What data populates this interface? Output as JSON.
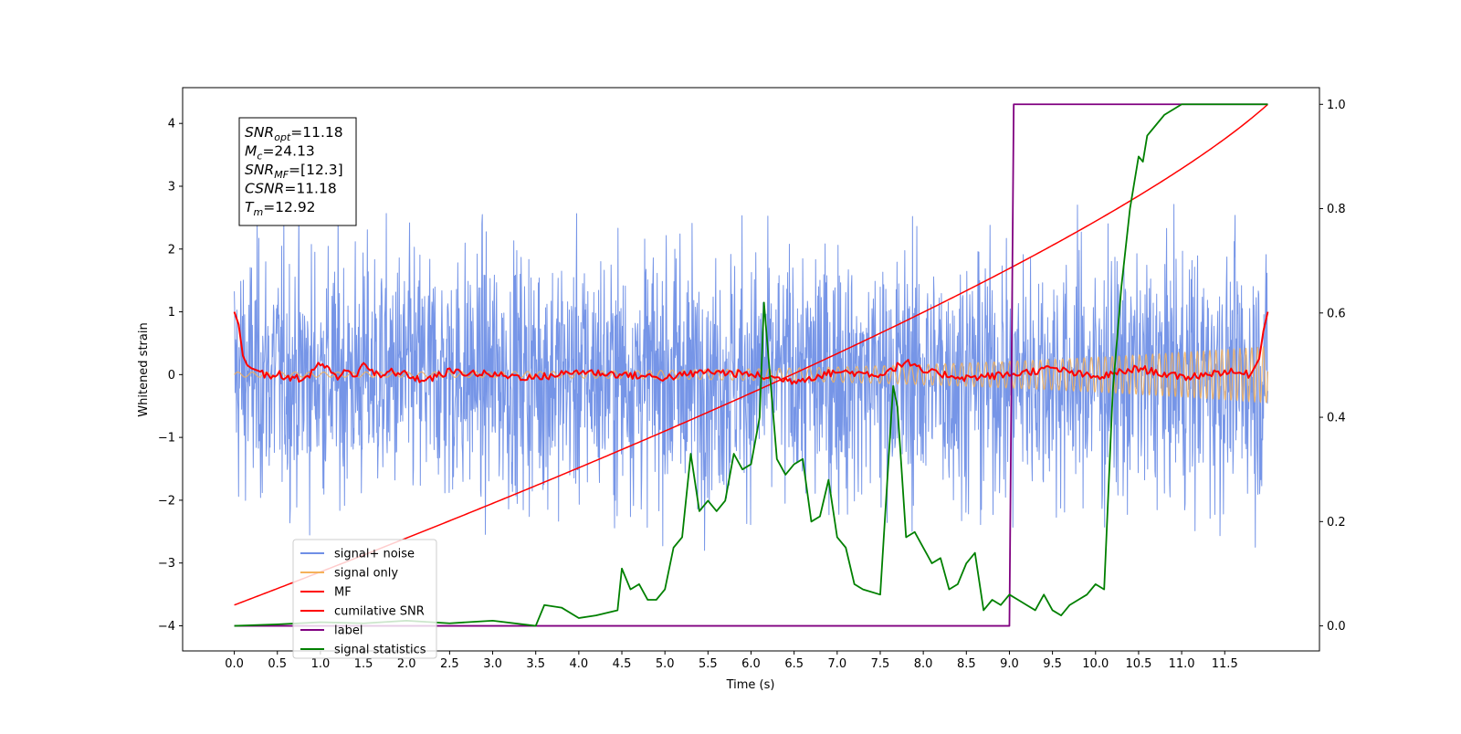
{
  "chart_data": {
    "type": "line",
    "xlabel": "Time (s)",
    "ylabel": "Whitened strain",
    "xlim": [
      -0.6,
      12.6
    ],
    "ylim": [
      -4.4,
      4.57
    ],
    "ylim_right": [
      -0.048,
      1.032
    ],
    "grid": false,
    "legend_position": "lower-left",
    "x_ticks": [
      "0.0",
      "0.5",
      "1.0",
      "1.5",
      "2.0",
      "2.5",
      "3.0",
      "3.5",
      "4.0",
      "4.5",
      "5.0",
      "5.5",
      "6.0",
      "6.5",
      "7.0",
      "7.5",
      "8.0",
      "8.5",
      "9.0",
      "9.5",
      "10.0",
      "10.5",
      "11.0",
      "11.5"
    ],
    "y_ticks_left": [
      "4",
      "3",
      "2",
      "1",
      "0",
      "−1",
      "−2",
      "−3",
      "−4"
    ],
    "y_ticks_right": [
      "1.0",
      "0.8",
      "0.6",
      "0.4",
      "0.2",
      "0.0"
    ],
    "annotation": [
      {
        "base": "SNR",
        "sub": "opt",
        "value": "=11.18"
      },
      {
        "base": "M",
        "sub": "c",
        "value": "=24.13"
      },
      {
        "base": "SNR",
        "sub": "MF",
        "value": "=[12.3]"
      },
      {
        "base": "CSNR",
        "sub": "",
        "value": "=11.18"
      },
      {
        "base": "T",
        "sub": "m",
        "value": "=12.92"
      }
    ],
    "series": [
      {
        "name": "signal+ noise",
        "color": "#6f8fe6",
        "axis": "left",
        "kind": "noise",
        "x_range": [
          0,
          12
        ],
        "std": 1.0,
        "envelope_max": 3.1
      },
      {
        "name": "signal only",
        "color": "#f5b25a",
        "axis": "left",
        "kind": "chirp",
        "x_range": [
          0,
          12
        ],
        "amplitude_start": 0.04,
        "amplitude_end": 0.45
      },
      {
        "name": "MF",
        "color": "#ff0000",
        "axis": "left",
        "x": [
          0.0,
          0.05,
          0.1,
          0.15,
          0.2,
          0.3,
          0.4,
          0.5,
          0.6,
          0.7,
          0.8,
          0.9,
          1.0,
          1.1,
          1.2,
          1.3,
          1.4,
          1.5,
          1.6,
          1.7,
          1.8,
          2.0,
          2.2,
          2.5,
          3.0,
          3.5,
          4.0,
          4.5,
          5.0,
          5.5,
          6.0,
          6.5,
          7.0,
          7.5,
          7.8,
          8.0,
          8.5,
          9.0,
          9.5,
          10.0,
          10.5,
          11.0,
          11.5,
          11.8,
          11.9,
          11.95,
          12.0
        ],
        "y": [
          1.0,
          0.8,
          0.3,
          0.15,
          0.1,
          0.05,
          -0.05,
          0.03,
          -0.08,
          0.0,
          -0.12,
          0.05,
          0.17,
          0.1,
          -0.05,
          0.05,
          -0.02,
          0.2,
          0.05,
          -0.05,
          0.05,
          0.0,
          -0.1,
          0.05,
          0.0,
          -0.05,
          0.05,
          0.0,
          -0.05,
          0.05,
          0.0,
          -0.1,
          0.05,
          0.0,
          0.2,
          0.05,
          -0.05,
          0.0,
          0.1,
          -0.05,
          0.1,
          -0.05,
          0.05,
          0.0,
          0.25,
          0.7,
          1.0
        ]
      },
      {
        "name": "cumilative SNR",
        "color": "#ff0000",
        "axis": "right",
        "kind": "cumulative",
        "x_range": [
          0,
          12
        ],
        "y_start": 0.04,
        "y_end": 1.0
      },
      {
        "name": "label",
        "color": "#800080",
        "axis": "right",
        "x": [
          0.0,
          9.0,
          9.05,
          12.0
        ],
        "y": [
          0.0,
          0.0,
          1.0,
          1.0
        ]
      },
      {
        "name": "signal statistics",
        "color": "#008000",
        "axis": "right",
        "x": [
          0.0,
          0.5,
          1.0,
          1.5,
          2.0,
          2.5,
          3.0,
          3.5,
          3.6,
          3.8,
          4.0,
          4.2,
          4.45,
          4.5,
          4.6,
          4.7,
          4.8,
          4.9,
          5.0,
          5.1,
          5.2,
          5.3,
          5.4,
          5.5,
          5.6,
          5.7,
          5.8,
          5.9,
          6.0,
          6.1,
          6.15,
          6.25,
          6.3,
          6.4,
          6.5,
          6.6,
          6.7,
          6.8,
          6.9,
          7.0,
          7.1,
          7.2,
          7.3,
          7.5,
          7.65,
          7.7,
          7.8,
          7.9,
          8.0,
          8.1,
          8.2,
          8.3,
          8.4,
          8.5,
          8.6,
          8.7,
          8.8,
          8.9,
          9.0,
          9.1,
          9.2,
          9.3,
          9.4,
          9.5,
          9.6,
          9.7,
          9.8,
          9.9,
          10.0,
          10.1,
          10.2,
          10.3,
          10.4,
          10.5,
          10.55,
          10.6,
          10.7,
          10.8,
          10.9,
          11.0,
          11.1,
          11.2,
          11.3,
          11.5,
          11.8,
          12.0
        ],
        "y": [
          0.0,
          0.003,
          0.007,
          0.005,
          0.01,
          0.005,
          0.01,
          0.0,
          0.04,
          0.035,
          0.015,
          0.02,
          0.03,
          0.11,
          0.07,
          0.08,
          0.05,
          0.05,
          0.07,
          0.15,
          0.17,
          0.33,
          0.22,
          0.24,
          0.22,
          0.24,
          0.33,
          0.3,
          0.31,
          0.4,
          0.62,
          0.42,
          0.32,
          0.29,
          0.31,
          0.32,
          0.2,
          0.21,
          0.28,
          0.17,
          0.15,
          0.08,
          0.07,
          0.06,
          0.46,
          0.42,
          0.17,
          0.18,
          0.15,
          0.12,
          0.13,
          0.07,
          0.08,
          0.12,
          0.14,
          0.03,
          0.05,
          0.04,
          0.06,
          0.05,
          0.04,
          0.03,
          0.06,
          0.03,
          0.02,
          0.04,
          0.05,
          0.06,
          0.08,
          0.07,
          0.45,
          0.65,
          0.8,
          0.9,
          0.89,
          0.94,
          0.96,
          0.98,
          0.99,
          1.0,
          1.0,
          1.0,
          1.0,
          1.0,
          1.0,
          1.0
        ]
      }
    ]
  }
}
